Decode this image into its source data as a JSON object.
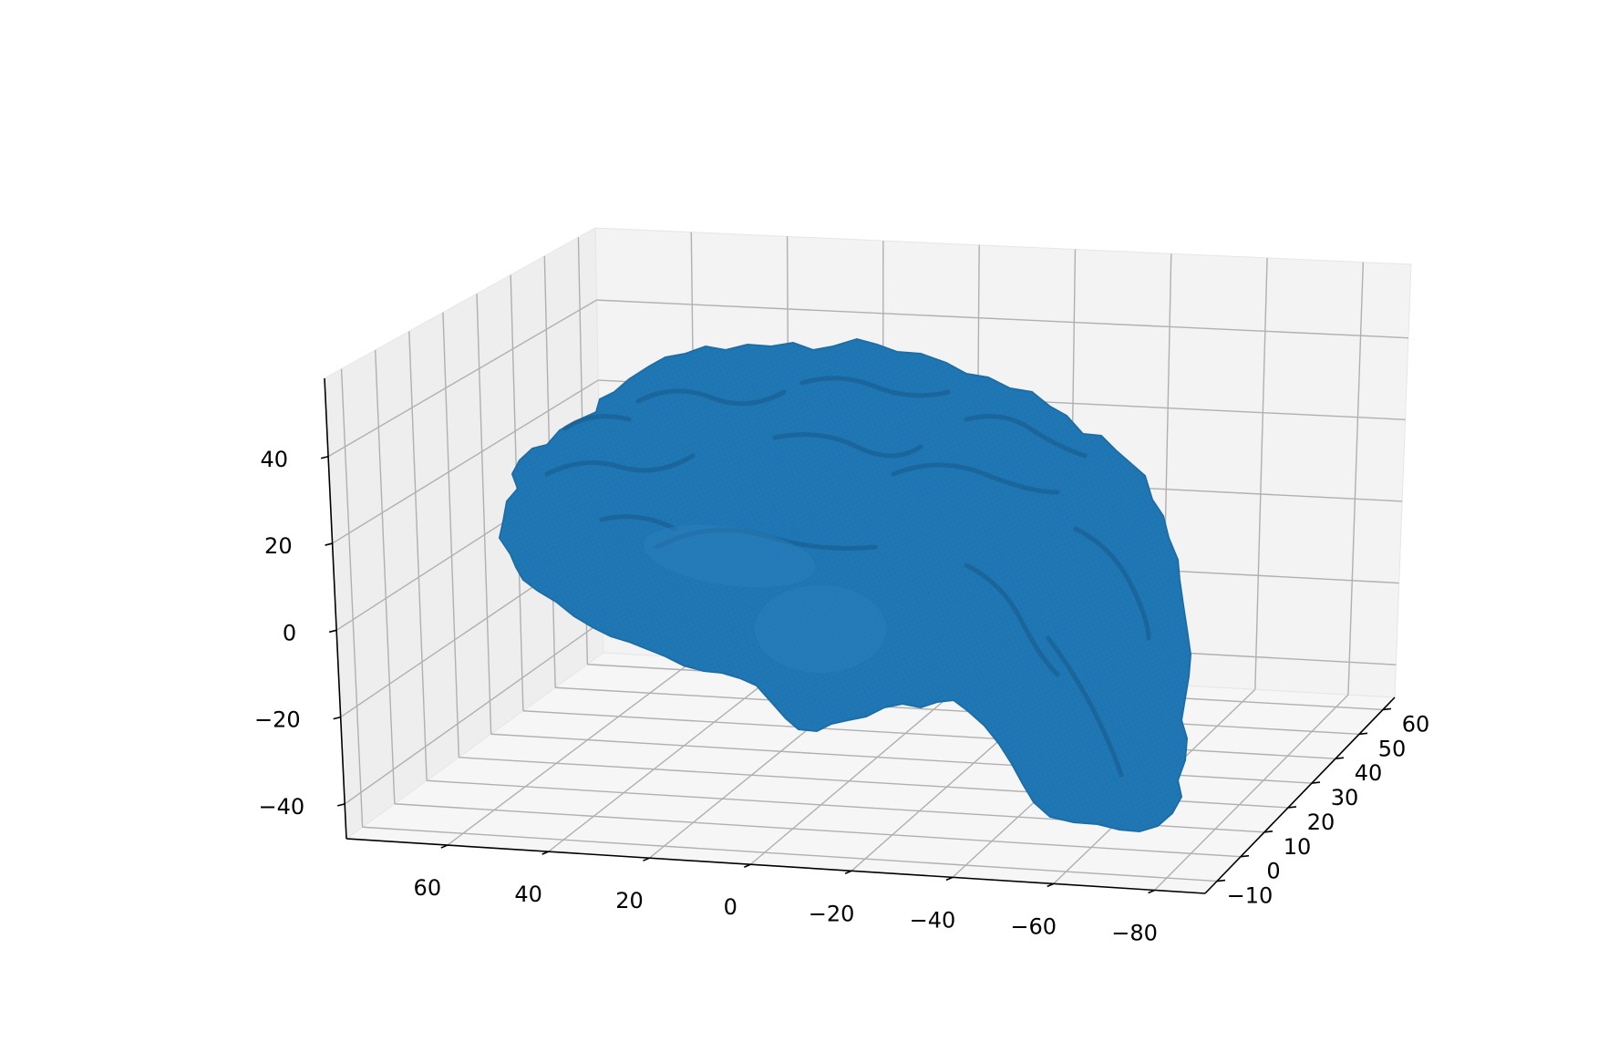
{
  "chart_data": {
    "type": "surface3d",
    "title": "",
    "xlabel": "",
    "ylabel": "",
    "zlabel": "",
    "surface_color": "#1f77b4",
    "grid": true,
    "pane_color": "#f2f2f2",
    "grid_color": "#b0b0b0",
    "axes": {
      "x": {
        "range": [
          -90,
          80
        ],
        "tick_values": [
          60,
          40,
          20,
          0,
          -20,
          -40,
          -60,
          -80
        ],
        "tick_labels": [
          "60",
          "40",
          "20",
          "0",
          "−20",
          "−40",
          "−60",
          "−80"
        ]
      },
      "y": {
        "range": [
          -15,
          65
        ],
        "tick_values": [
          -10,
          0,
          10,
          20,
          30,
          40,
          50,
          60
        ],
        "tick_labels": [
          "−10",
          "0",
          "10",
          "20",
          "30",
          "40",
          "50",
          "60"
        ]
      },
      "z": {
        "range": [
          -48,
          58
        ],
        "tick_values": [
          -40,
          -20,
          0,
          20,
          40
        ],
        "tick_labels": [
          "−40",
          "−20",
          "0",
          "20",
          "40"
        ]
      }
    }
  }
}
